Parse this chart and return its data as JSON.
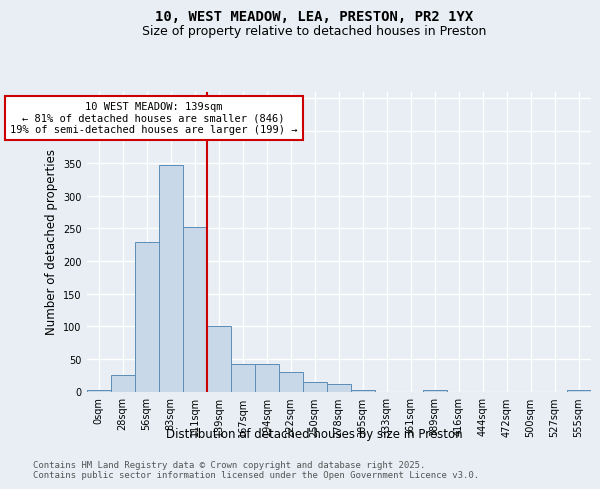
{
  "title": "10, WEST MEADOW, LEA, PRESTON, PR2 1YX",
  "subtitle": "Size of property relative to detached houses in Preston",
  "xlabel": "Distribution of detached houses by size in Preston",
  "ylabel": "Number of detached properties",
  "bar_color": "#c8d8e8",
  "bar_edge_color": "#5b8db8",
  "bin_labels": [
    "0sqm",
    "28sqm",
    "56sqm",
    "83sqm",
    "111sqm",
    "139sqm",
    "167sqm",
    "194sqm",
    "222sqm",
    "250sqm",
    "278sqm",
    "305sqm",
    "333sqm",
    "361sqm",
    "389sqm",
    "416sqm",
    "444sqm",
    "472sqm",
    "500sqm",
    "527sqm",
    "555sqm"
  ],
  "bar_values": [
    3,
    25,
    230,
    348,
    252,
    100,
    42,
    42,
    30,
    15,
    11,
    3,
    0,
    0,
    3,
    0,
    0,
    0,
    0,
    0,
    2
  ],
  "vline_x": 5,
  "vline_color": "#cc0000",
  "annotation_text": "10 WEST MEADOW: 139sqm\n← 81% of detached houses are smaller (846)\n19% of semi-detached houses are larger (199) →",
  "annotation_box_color": "#ffffff",
  "annotation_box_edge_color": "#cc0000",
  "ylim": [
    0,
    460
  ],
  "yticks": [
    0,
    50,
    100,
    150,
    200,
    250,
    300,
    350,
    400,
    450
  ],
  "bg_color": "#e8eef4",
  "grid_color": "#ffffff",
  "footer_line1": "Contains HM Land Registry data © Crown copyright and database right 2025.",
  "footer_line2": "Contains public sector information licensed under the Open Government Licence v3.0.",
  "title_fontsize": 10,
  "subtitle_fontsize": 9,
  "xlabel_fontsize": 8.5,
  "ylabel_fontsize": 8.5,
  "tick_fontsize": 7,
  "annotation_fontsize": 7.5,
  "footer_fontsize": 6.5
}
